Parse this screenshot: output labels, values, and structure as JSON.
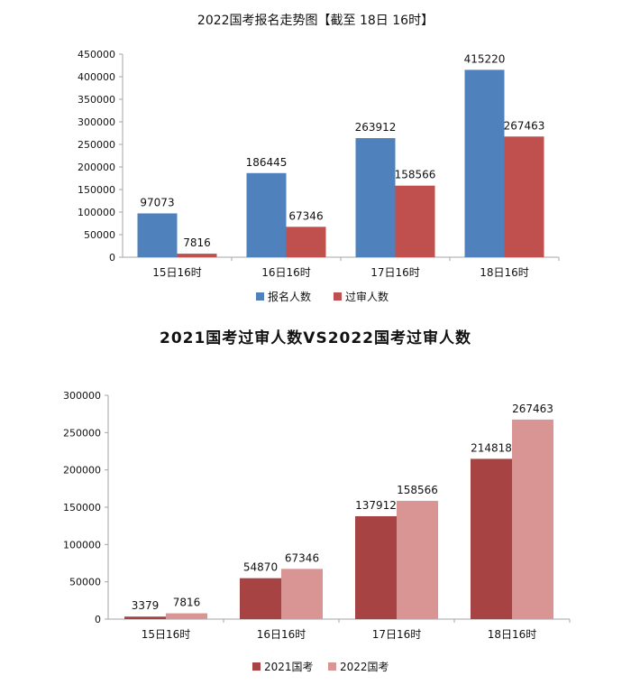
{
  "chart_data": [
    {
      "type": "bar",
      "title": "2022国考报名走势图【截至 18日 16时】",
      "categories": [
        "15日16时",
        "16日16时",
        "17日16时",
        "18日16时"
      ],
      "series": [
        {
          "name": "报名人数",
          "color": "#4f81bd",
          "values": [
            97073,
            186445,
            263912,
            415220
          ]
        },
        {
          "name": "过审人数",
          "color": "#c0504d",
          "values": [
            7816,
            67346,
            158566,
            267463
          ]
        }
      ],
      "ylim": [
        0,
        450000
      ],
      "yticks": [
        0,
        50000,
        100000,
        150000,
        200000,
        250000,
        300000,
        350000,
        400000,
        450000
      ],
      "xlabel": "",
      "ylabel": "",
      "grid": false,
      "legend": "bottom"
    },
    {
      "type": "bar",
      "title": "2021国考过审人数VS2022国考过审人数",
      "categories": [
        "15日16时",
        "16日16时",
        "17日16时",
        "18日16时"
      ],
      "series": [
        {
          "name": "2021国考",
          "color": "#a84343",
          "values": [
            3379,
            54870,
            137912,
            214818
          ]
        },
        {
          "name": "2022国考",
          "color": "#d99594",
          "values": [
            7816,
            67346,
            158566,
            267463
          ]
        }
      ],
      "ylim": [
        0,
        300000
      ],
      "yticks": [
        0,
        50000,
        100000,
        150000,
        200000,
        250000,
        300000
      ],
      "xlabel": "",
      "ylabel": "",
      "grid": false,
      "legend": "bottom"
    }
  ]
}
